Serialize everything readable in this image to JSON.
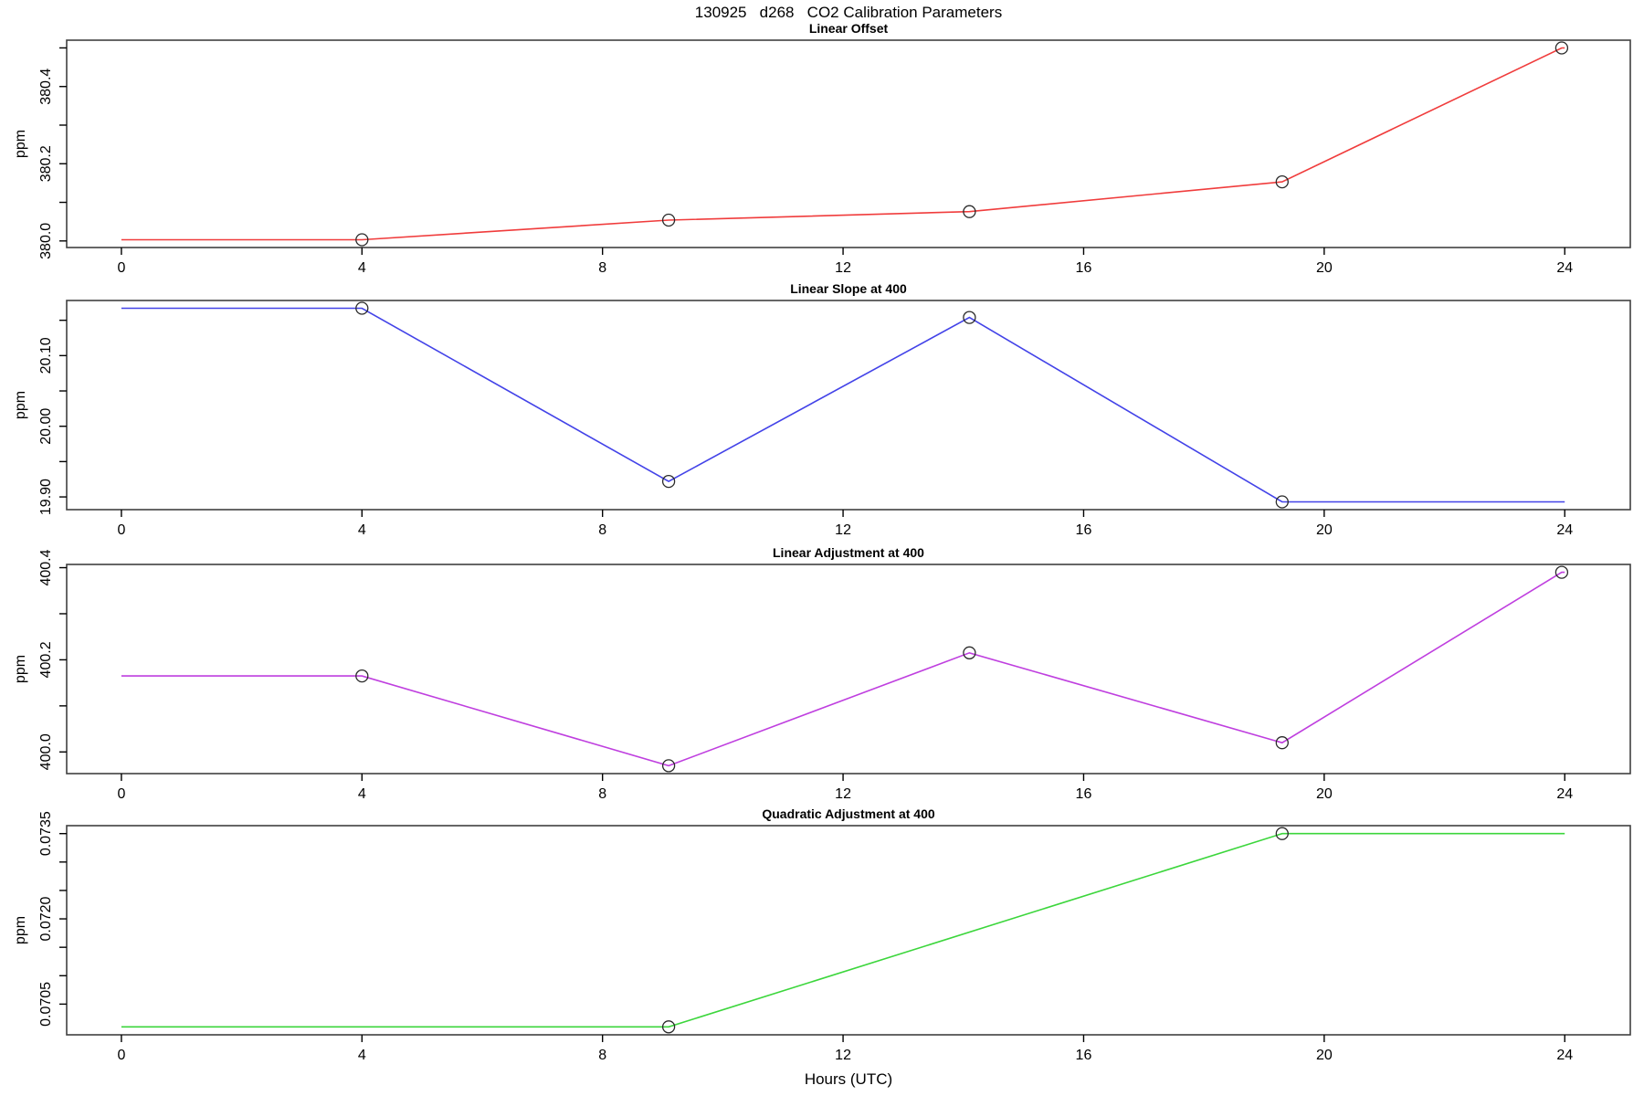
{
  "chart_data": {
    "type": "line",
    "title": "130925   d268   CO2 Calibration Parameters",
    "xlabel": "Hours (UTC)",
    "x_axis": {
      "xlim": [
        -0.91,
        25.09
      ],
      "xticks": [
        0,
        4,
        8,
        12,
        16,
        20,
        24
      ]
    },
    "legend": "none",
    "grid": false,
    "marker_style": {
      "shape": "open-circle",
      "radius_px": 6.5,
      "stroke": "#2a2a2a"
    },
    "box_stroke": "#404040",
    "panels": [
      {
        "title": "Linear Offset",
        "ylabel": "ppm",
        "color": "#f03c3c",
        "ylim": [
          379.983,
          380.52
        ],
        "yticks": [
          380.0,
          380.1,
          380.2,
          380.3,
          380.4,
          380.5
        ],
        "ytick_labels": [
          "380.0",
          "",
          "380.2",
          "",
          "380.4",
          ""
        ],
        "line": [
          [
            0,
            380.003
          ],
          [
            4,
            380.003
          ],
          [
            9.1,
            380.054
          ],
          [
            14.1,
            380.076
          ],
          [
            19.3,
            380.153
          ],
          [
            23.95,
            380.5
          ],
          [
            24,
            380.5
          ]
        ],
        "markers": [
          [
            4,
            380.003
          ],
          [
            9.1,
            380.054
          ],
          [
            14.1,
            380.076
          ],
          [
            19.3,
            380.153
          ],
          [
            23.95,
            380.5
          ]
        ]
      },
      {
        "title": "Linear Slope at 400",
        "ylabel": "ppm",
        "color": "#4343e8",
        "ylim": [
          19.882,
          20.178
        ],
        "yticks": [
          19.9,
          19.95,
          20.0,
          20.05,
          20.1,
          20.15
        ],
        "ytick_labels": [
          "19.90",
          "",
          "20.00",
          "",
          "20.10",
          ""
        ],
        "line": [
          [
            0,
            20.167
          ],
          [
            4,
            20.167
          ],
          [
            9.1,
            19.922
          ],
          [
            14.1,
            20.154
          ],
          [
            19.3,
            19.893
          ],
          [
            24,
            19.893
          ]
        ],
        "markers": [
          [
            4,
            20.167
          ],
          [
            9.1,
            19.922
          ],
          [
            14.1,
            20.154
          ],
          [
            19.3,
            19.893
          ]
        ]
      },
      {
        "title": "Linear Adjustment at 400",
        "ylabel": "ppm",
        "color": "#bf3fdf",
        "ylim": [
          399.953,
          400.407
        ],
        "yticks": [
          400.0,
          400.1,
          400.2,
          400.3,
          400.4
        ],
        "ytick_labels": [
          "400.0",
          "",
          "400.2",
          "",
          "400.4"
        ],
        "line": [
          [
            0,
            400.165
          ],
          [
            4,
            400.165
          ],
          [
            9.1,
            399.97
          ],
          [
            14.1,
            400.215
          ],
          [
            19.3,
            400.02
          ],
          [
            23.95,
            400.39
          ],
          [
            24,
            400.39
          ]
        ],
        "markers": [
          [
            4,
            400.165
          ],
          [
            9.1,
            399.97
          ],
          [
            14.1,
            400.215
          ],
          [
            19.3,
            400.02
          ],
          [
            23.95,
            400.39
          ]
        ]
      },
      {
        "title": "Quadratic Adjustment at 400",
        "ylabel": "ppm",
        "color": "#3cd63c",
        "ylim": [
          0.06996,
          0.07364
        ],
        "yticks": [
          0.0705,
          0.071,
          0.0715,
          0.072,
          0.0725,
          0.073,
          0.0735
        ],
        "ytick_labels": [
          "0.0705",
          "",
          "",
          "0.0720",
          "",
          "",
          "0.0735"
        ],
        "line": [
          [
            0,
            0.0701
          ],
          [
            9.1,
            0.0701
          ],
          [
            19.3,
            0.0735
          ],
          [
            24,
            0.0735
          ]
        ],
        "markers": [
          [
            9.1,
            0.0701
          ],
          [
            19.3,
            0.0735
          ]
        ]
      }
    ]
  }
}
